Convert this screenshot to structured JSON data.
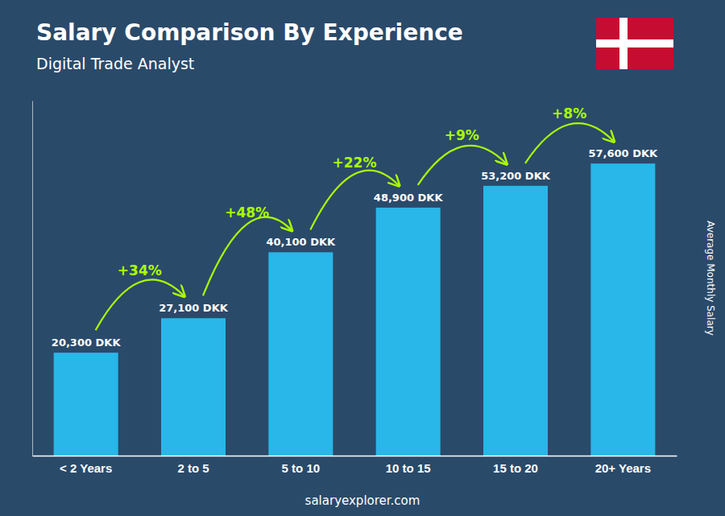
{
  "chart_data": {
    "type": "bar",
    "title": "Salary Comparison By Experience",
    "subtitle": "Digital Trade Analyst",
    "ylabel": "Average Monthly Salary",
    "footer": "salaryexplorer.com",
    "categories": [
      "< 2 Years",
      "2 to 5",
      "5 to 10",
      "10 to 15",
      "15 to 20",
      "20+ Years"
    ],
    "values": [
      20300,
      27100,
      40100,
      48900,
      53200,
      57600
    ],
    "value_labels": [
      "20,300 DKK",
      "27,100 DKK",
      "40,100 DKK",
      "48,900 DKK",
      "53,200 DKK",
      "57,600 DKK"
    ],
    "data_labels": true,
    "annotations": [
      "+34%",
      "+48%",
      "+22%",
      "+9%",
      "+8%"
    ],
    "color": "#29b6e8",
    "ylim": [
      0,
      70000
    ],
    "tick_labels": "x",
    "grid": false
  }
}
